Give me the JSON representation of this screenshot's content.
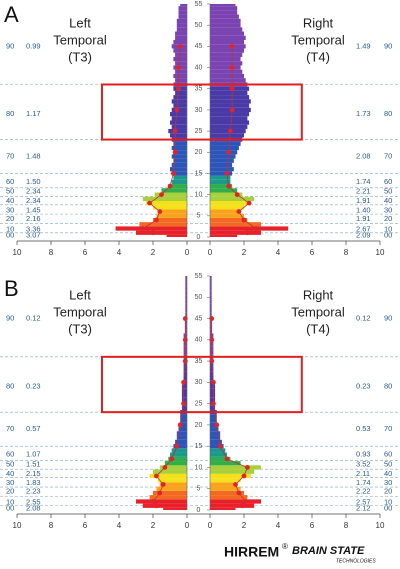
{
  "chart_data": [
    {
      "type": "butterfly",
      "panel": "A",
      "left_title": [
        "Left",
        "Temporal",
        "(T3)"
      ],
      "right_title": [
        "Right",
        "Temporal",
        "(T4)"
      ],
      "ylim": [
        0,
        55
      ],
      "yticks": [
        0,
        5,
        10,
        15,
        20,
        25,
        30,
        35,
        40,
        45,
        50,
        55
      ],
      "xlim": [
        0,
        10
      ],
      "xticks": [
        0,
        2,
        4,
        6,
        8,
        10
      ],
      "bands": [
        "90",
        "80",
        "70",
        "60",
        "50",
        "40",
        "30",
        "20",
        "10",
        "00"
      ],
      "left_band_values": [
        "0.99",
        "1.17",
        "1.48",
        "1.50",
        "2.34",
        "2.34",
        "1.45",
        "2.16",
        "3.36",
        "3.07"
      ],
      "right_band_values": [
        "1.49",
        "1.73",
        "2.08",
        "1.74",
        "2.21",
        "1.91",
        "1.40",
        "1.91",
        "2.67",
        "2.09"
      ],
      "freq": [
        0,
        1,
        2,
        3,
        4,
        5,
        6,
        7,
        8,
        9,
        10,
        11,
        12,
        13,
        14,
        15,
        16,
        17,
        18,
        19,
        20,
        21,
        22,
        23,
        24,
        25,
        26,
        27,
        28,
        29,
        30,
        31,
        32,
        33,
        34,
        35,
        36,
        37,
        38,
        39,
        40,
        41,
        42,
        43,
        44,
        45,
        46,
        47,
        48,
        49,
        50,
        51,
        52,
        53,
        54,
        55
      ],
      "left_values": [
        1.2,
        3.0,
        4.2,
        2.8,
        2.0,
        1.8,
        1.6,
        2.0,
        2.4,
        2.6,
        1.9,
        1.5,
        1.1,
        0.9,
        0.8,
        0.9,
        1.0,
        0.9,
        0.8,
        0.9,
        0.8,
        0.9,
        0.8,
        0.9,
        1.0,
        1.1,
        0.9,
        1.0,
        0.9,
        1.0,
        0.9,
        0.8,
        0.9,
        0.8,
        0.7,
        0.8,
        0.8,
        0.7,
        0.8,
        0.7,
        0.8,
        0.7,
        0.8,
        0.7,
        0.8,
        0.9,
        0.8,
        0.7,
        0.7,
        0.6,
        0.6,
        0.6,
        0.5,
        0.5,
        0.5,
        0.4
      ],
      "right_values": [
        1.6,
        3.0,
        4.6,
        3.0,
        2.2,
        2.0,
        1.7,
        2.0,
        2.4,
        2.6,
        1.9,
        1.6,
        1.3,
        1.2,
        1.2,
        1.3,
        1.4,
        1.3,
        1.4,
        1.5,
        1.6,
        1.7,
        1.8,
        1.9,
        2.0,
        2.1,
        2.2,
        2.3,
        2.2,
        2.3,
        2.4,
        2.3,
        2.4,
        2.3,
        2.2,
        2.3,
        2.2,
        2.1,
        2.0,
        1.9,
        1.8,
        1.9,
        1.8,
        1.9,
        2.0,
        2.1,
        2.0,
        2.1,
        2.0,
        1.9,
        1.8,
        1.8,
        1.7,
        1.6,
        1.6,
        1.5
      ],
      "trend_x": [
        1,
        2,
        4,
        6,
        8,
        10,
        12,
        15,
        20,
        25,
        30,
        35,
        40,
        45
      ],
      "trend_left": [
        2.0,
        2.6,
        1.8,
        1.6,
        2.2,
        1.5,
        1.0,
        0.8,
        0.7,
        0.7,
        0.6,
        0.5,
        0.5,
        0.4
      ],
      "trend_right": [
        2.2,
        2.7,
        2.0,
        1.7,
        2.3,
        1.6,
        1.1,
        1.0,
        1.1,
        1.2,
        1.3,
        1.3,
        1.3,
        1.3
      ]
    },
    {
      "type": "butterfly",
      "panel": "B",
      "left_title": [
        "Left",
        "Temporal",
        "(T3)"
      ],
      "right_title": [
        "Right",
        "Temporal",
        "(T4)"
      ],
      "ylim": [
        0,
        55
      ],
      "yticks": [
        0,
        5,
        10,
        15,
        20,
        25,
        30,
        35,
        40,
        45,
        50,
        55
      ],
      "xlim": [
        0,
        10
      ],
      "xticks": [
        0,
        2,
        4,
        6,
        8,
        10
      ],
      "bands": [
        "90",
        "80",
        "70",
        "60",
        "50",
        "40",
        "30",
        "20",
        "10",
        "00"
      ],
      "left_band_values": [
        "0.12",
        "0.23",
        "0.57",
        "1.07",
        "1.51",
        "2.15",
        "1.83",
        "2.23",
        "2.55",
        "2.08"
      ],
      "right_band_values": [
        "0.12",
        "0.23",
        "0.53",
        "0.93",
        "3.52",
        "2.11",
        "1.74",
        "2.22",
        "2.57",
        "2.12"
      ],
      "freq": [
        0,
        1,
        2,
        3,
        4,
        5,
        6,
        7,
        8,
        9,
        10,
        11,
        12,
        13,
        14,
        15,
        16,
        17,
        18,
        19,
        20,
        21,
        22,
        23,
        24,
        25,
        26,
        27,
        28,
        29,
        30,
        31,
        32,
        33,
        34,
        35,
        36,
        37,
        38,
        39,
        40,
        41,
        42,
        43,
        44,
        45,
        46,
        47,
        48,
        49,
        50,
        51,
        52,
        53,
        54,
        55
      ],
      "left_values": [
        1.4,
        2.6,
        3.0,
        2.2,
        2.0,
        1.8,
        1.6,
        1.7,
        2.2,
        2.0,
        1.6,
        1.3,
        1.1,
        1.0,
        0.9,
        0.8,
        0.7,
        0.6,
        0.6,
        0.5,
        0.5,
        0.4,
        0.4,
        0.4,
        0.3,
        0.3,
        0.3,
        0.3,
        0.3,
        0.3,
        0.2,
        0.2,
        0.2,
        0.2,
        0.2,
        0.2,
        0.2,
        0.2,
        0.2,
        0.2,
        0.2,
        0.2,
        0.1,
        0.1,
        0.1,
        0.1,
        0.1,
        0.1,
        0.1,
        0.1,
        0.1,
        0.1,
        0.1,
        0.1,
        0.1,
        0.1
      ],
      "right_values": [
        1.5,
        2.6,
        3.0,
        2.2,
        2.0,
        1.8,
        1.6,
        1.8,
        2.4,
        2.6,
        3.0,
        1.8,
        1.2,
        1.0,
        0.9,
        0.8,
        0.7,
        0.6,
        0.6,
        0.5,
        0.5,
        0.4,
        0.4,
        0.4,
        0.3,
        0.3,
        0.3,
        0.3,
        0.3,
        0.3,
        0.2,
        0.2,
        0.2,
        0.2,
        0.2,
        0.2,
        0.2,
        0.2,
        0.2,
        0.2,
        0.2,
        0.2,
        0.1,
        0.1,
        0.1,
        0.1,
        0.1,
        0.1,
        0.1,
        0.1,
        0.1,
        0.1,
        0.1,
        0.1,
        0.1,
        0.1
      ],
      "trend_x": [
        1,
        2,
        4,
        6,
        8,
        10,
        12,
        15,
        20,
        25,
        30,
        35,
        40,
        45
      ],
      "trend_left": [
        1.8,
        2.0,
        1.6,
        1.4,
        1.8,
        1.3,
        0.9,
        0.6,
        0.4,
        0.2,
        0.2,
        0.1,
        0.1,
        0.1
      ],
      "trend_right": [
        1.9,
        2.1,
        1.7,
        1.5,
        2.0,
        2.2,
        1.0,
        0.6,
        0.4,
        0.2,
        0.2,
        0.1,
        0.1,
        0.1
      ]
    }
  ],
  "footer": {
    "brand": "HIRREM",
    "reg": "®",
    "logo": "BRAIN STATE",
    "logo_sub": "TECHNOLOGIES"
  }
}
